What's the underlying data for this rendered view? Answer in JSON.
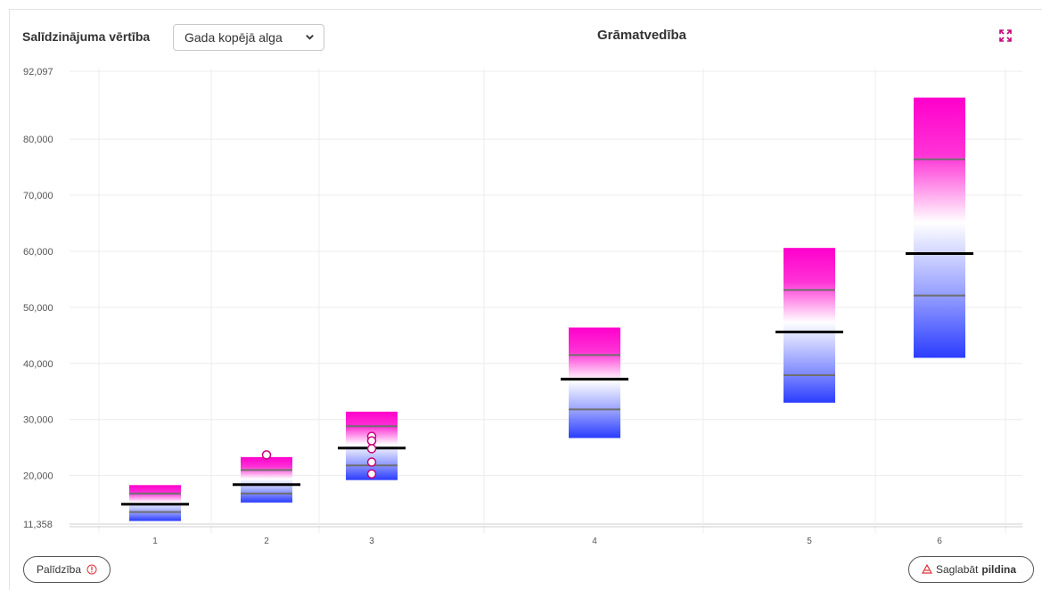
{
  "header": {
    "compare_label": "Salīdzinājuma vērtība",
    "select_value": "Gada kopējā alga",
    "title": "Grāmatvedība",
    "expand_icon": "expand-icon"
  },
  "footer": {
    "help_label": "Palīdzība",
    "help_icon": "info-icon",
    "save_icon": "save-icon",
    "save_prefix": "Saglabāt",
    "save_bold": "pildina"
  },
  "colors": {
    "top": "#ff00cc",
    "bottom": "#2b3cff",
    "median": "#000000",
    "quartile": "#6e6e6e",
    "marker": "#c8007a"
  },
  "chart_data": {
    "type": "box-range",
    "categories": [
      "1",
      "2",
      "3",
      "4",
      "5",
      "6"
    ],
    "y_range": [
      11358,
      92097
    ],
    "y_ticks": [
      "11,358",
      "20,000",
      "30,000",
      "40,000",
      "50,000",
      "60,000",
      "70,000",
      "80,000",
      "92,097"
    ],
    "y_tick_values": [
      11358,
      20000,
      30000,
      40000,
      50000,
      60000,
      70000,
      80000,
      92097
    ],
    "boxes": [
      {
        "category": "1",
        "min": 11900,
        "q1": 13500,
        "median": 14900,
        "q3": 16800,
        "max": 18300
      },
      {
        "category": "2",
        "min": 15200,
        "q1": 16800,
        "median": 18400,
        "q3": 21000,
        "max": 23300
      },
      {
        "category": "3",
        "min": 19200,
        "q1": 21800,
        "median": 24900,
        "q3": 28800,
        "max": 31400
      },
      {
        "category": "4",
        "min": 26700,
        "q1": 31800,
        "median": 37200,
        "q3": 41500,
        "max": 46400
      },
      {
        "category": "5",
        "min": 33000,
        "q1": 37900,
        "median": 45600,
        "q3": 53100,
        "max": 60600
      },
      {
        "category": "6",
        "min": 41000,
        "q1": 52100,
        "median": 59600,
        "q3": 76400,
        "max": 87400
      }
    ],
    "points": [
      {
        "category": "2",
        "value": 23700
      },
      {
        "category": "3",
        "value": 27000
      },
      {
        "category": "3",
        "value": 26200
      },
      {
        "category": "3",
        "value": 24800
      },
      {
        "category": "3",
        "value": 22400
      },
      {
        "category": "3",
        "value": 20300
      }
    ]
  }
}
